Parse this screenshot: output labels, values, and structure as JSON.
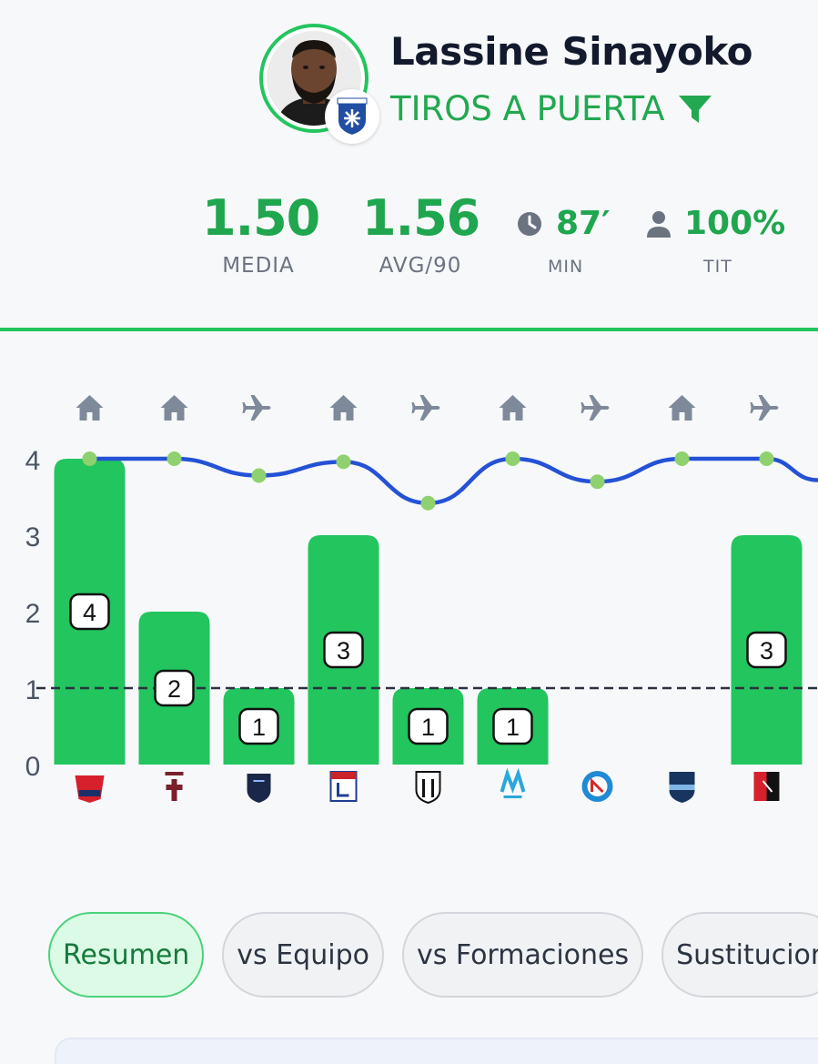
{
  "player": {
    "name": "Lassine Sinayoko",
    "stat_type": "TIROS A PUERTA"
  },
  "stats": {
    "media": {
      "value": "1.50",
      "label": "MEDIA"
    },
    "avg90": {
      "value": "1.56",
      "label": "AVG/90"
    },
    "min": {
      "value": "87′",
      "label": "MIN",
      "icon": "clock-icon"
    },
    "tit": {
      "value": "100%",
      "label": "TIT",
      "icon": "person-icon"
    }
  },
  "colors": {
    "accent": "#22c55e",
    "accent_text": "#1fa64e",
    "trend_line": "#2452d6",
    "trend_point": "#8fd16e",
    "venue_icon": "#7e8a9a"
  },
  "chart_data": {
    "type": "bar",
    "categories": [
      "LOSC",
      "FC Metz",
      "Paris FC",
      "OL",
      "SCO",
      "OM",
      "RCS",
      "HAC",
      "SRFC"
    ],
    "venues": [
      "home",
      "home",
      "away",
      "home",
      "away",
      "home",
      "away",
      "home",
      "away"
    ],
    "values": [
      4,
      2,
      1,
      3,
      1,
      1,
      0,
      0,
      3
    ],
    "data_labels": [
      "4",
      "2",
      "1",
      "3",
      "1",
      "1",
      "",
      "",
      "3"
    ],
    "y_ticks": [
      "0",
      "1",
      "2",
      "3",
      "4"
    ],
    "ylim": [
      0,
      4
    ],
    "reference_line": 1,
    "trend": [
      4,
      4,
      3.78,
      3.96,
      3.42,
      4,
      3.7,
      4,
      4
    ]
  },
  "tabs": [
    {
      "label": "Resumen",
      "active": true
    },
    {
      "label": "vs Equipo",
      "active": false
    },
    {
      "label": "vs Formaciones",
      "active": false
    },
    {
      "label": "Sustitucion",
      "active": false
    }
  ]
}
